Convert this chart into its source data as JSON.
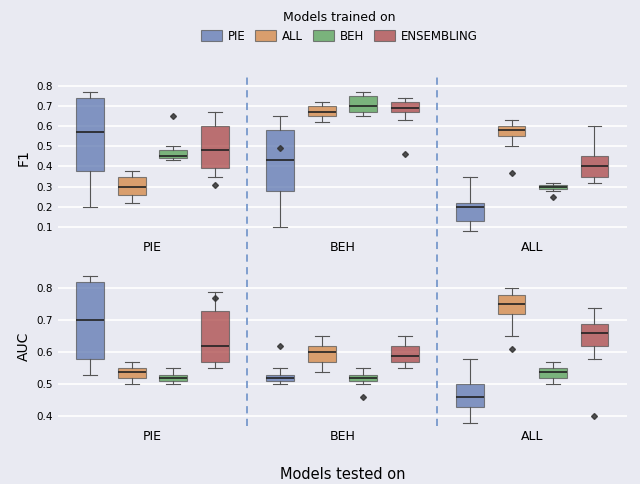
{
  "title": "Models trained on",
  "xlabel": "Models tested on",
  "row_labels": [
    "F1",
    "AUC"
  ],
  "col_labels": [
    "PIE",
    "BEH",
    "ALL"
  ],
  "models": [
    "PIE",
    "ALL",
    "BEH",
    "ENSEMBLING"
  ],
  "colors": {
    "PIE": "#5872ae",
    "ALL": "#d4813a",
    "BEH": "#4f9e4f",
    "ENSEMBLING": "#a84040"
  },
  "background_color": "#e9eaf2",
  "legend_title": "Models trained on",
  "boxplot_data": {
    "F1": {
      "PIE": {
        "PIE": {
          "whislo": 0.2,
          "q1": 0.38,
          "med": 0.57,
          "q3": 0.74,
          "whishi": 0.77,
          "fliers": []
        },
        "ALL": {
          "whislo": 0.22,
          "q1": 0.26,
          "med": 0.3,
          "q3": 0.35,
          "whishi": 0.38,
          "fliers": []
        },
        "BEH": {
          "whislo": 0.43,
          "q1": 0.44,
          "med": 0.45,
          "q3": 0.48,
          "whishi": 0.5,
          "fliers": [
            0.65
          ]
        },
        "ENSEMBLING": {
          "whislo": 0.35,
          "q1": 0.39,
          "med": 0.48,
          "q3": 0.6,
          "whishi": 0.67,
          "fliers": [
            0.31
          ]
        }
      },
      "BEH": {
        "PIE": {
          "whislo": 0.1,
          "q1": 0.28,
          "med": 0.43,
          "q3": 0.58,
          "whishi": 0.65,
          "fliers": [
            0.49
          ]
        },
        "ALL": {
          "whislo": 0.62,
          "q1": 0.65,
          "med": 0.67,
          "q3": 0.7,
          "whishi": 0.72,
          "fliers": []
        },
        "BEH": {
          "whislo": 0.65,
          "q1": 0.67,
          "med": 0.7,
          "q3": 0.75,
          "whishi": 0.77,
          "fliers": []
        },
        "ENSEMBLING": {
          "whislo": 0.63,
          "q1": 0.67,
          "med": 0.69,
          "q3": 0.72,
          "whishi": 0.74,
          "fliers": [
            0.46
          ]
        }
      },
      "ALL": {
        "PIE": {
          "whislo": 0.08,
          "q1": 0.13,
          "med": 0.2,
          "q3": 0.22,
          "whishi": 0.35,
          "fliers": []
        },
        "ALL": {
          "whislo": 0.5,
          "q1": 0.55,
          "med": 0.58,
          "q3": 0.6,
          "whishi": 0.63,
          "fliers": [
            0.37
          ]
        },
        "BEH": {
          "whislo": 0.28,
          "q1": 0.29,
          "med": 0.3,
          "q3": 0.31,
          "whishi": 0.32,
          "fliers": [
            0.25
          ]
        },
        "ENSEMBLING": {
          "whislo": 0.32,
          "q1": 0.35,
          "med": 0.4,
          "q3": 0.45,
          "whishi": 0.6,
          "fliers": []
        }
      }
    },
    "AUC": {
      "PIE": {
        "PIE": {
          "whislo": 0.53,
          "q1": 0.58,
          "med": 0.7,
          "q3": 0.82,
          "whishi": 0.84,
          "fliers": []
        },
        "ALL": {
          "whislo": 0.5,
          "q1": 0.52,
          "med": 0.54,
          "q3": 0.55,
          "whishi": 0.57,
          "fliers": []
        },
        "BEH": {
          "whislo": 0.5,
          "q1": 0.51,
          "med": 0.52,
          "q3": 0.53,
          "whishi": 0.55,
          "fliers": []
        },
        "ENSEMBLING": {
          "whislo": 0.55,
          "q1": 0.57,
          "med": 0.62,
          "q3": 0.73,
          "whishi": 0.79,
          "fliers": [
            0.77
          ]
        }
      },
      "BEH": {
        "PIE": {
          "whislo": 0.5,
          "q1": 0.51,
          "med": 0.52,
          "q3": 0.53,
          "whishi": 0.55,
          "fliers": [
            0.62
          ]
        },
        "ALL": {
          "whislo": 0.54,
          "q1": 0.57,
          "med": 0.6,
          "q3": 0.62,
          "whishi": 0.65,
          "fliers": []
        },
        "BEH": {
          "whislo": 0.5,
          "q1": 0.51,
          "med": 0.52,
          "q3": 0.53,
          "whishi": 0.55,
          "fliers": [
            0.46
          ]
        },
        "ENSEMBLING": {
          "whislo": 0.55,
          "q1": 0.57,
          "med": 0.59,
          "q3": 0.62,
          "whishi": 0.65,
          "fliers": []
        }
      },
      "ALL": {
        "PIE": {
          "whislo": 0.38,
          "q1": 0.43,
          "med": 0.46,
          "q3": 0.5,
          "whishi": 0.58,
          "fliers": []
        },
        "ALL": {
          "whislo": 0.65,
          "q1": 0.72,
          "med": 0.75,
          "q3": 0.78,
          "whishi": 0.8,
          "fliers": [
            0.61
          ]
        },
        "BEH": {
          "whislo": 0.5,
          "q1": 0.52,
          "med": 0.54,
          "q3": 0.55,
          "whishi": 0.57,
          "fliers": []
        },
        "ENSEMBLING": {
          "whislo": 0.58,
          "q1": 0.62,
          "med": 0.66,
          "q3": 0.69,
          "whishi": 0.74,
          "fliers": [
            0.4
          ]
        }
      }
    }
  }
}
